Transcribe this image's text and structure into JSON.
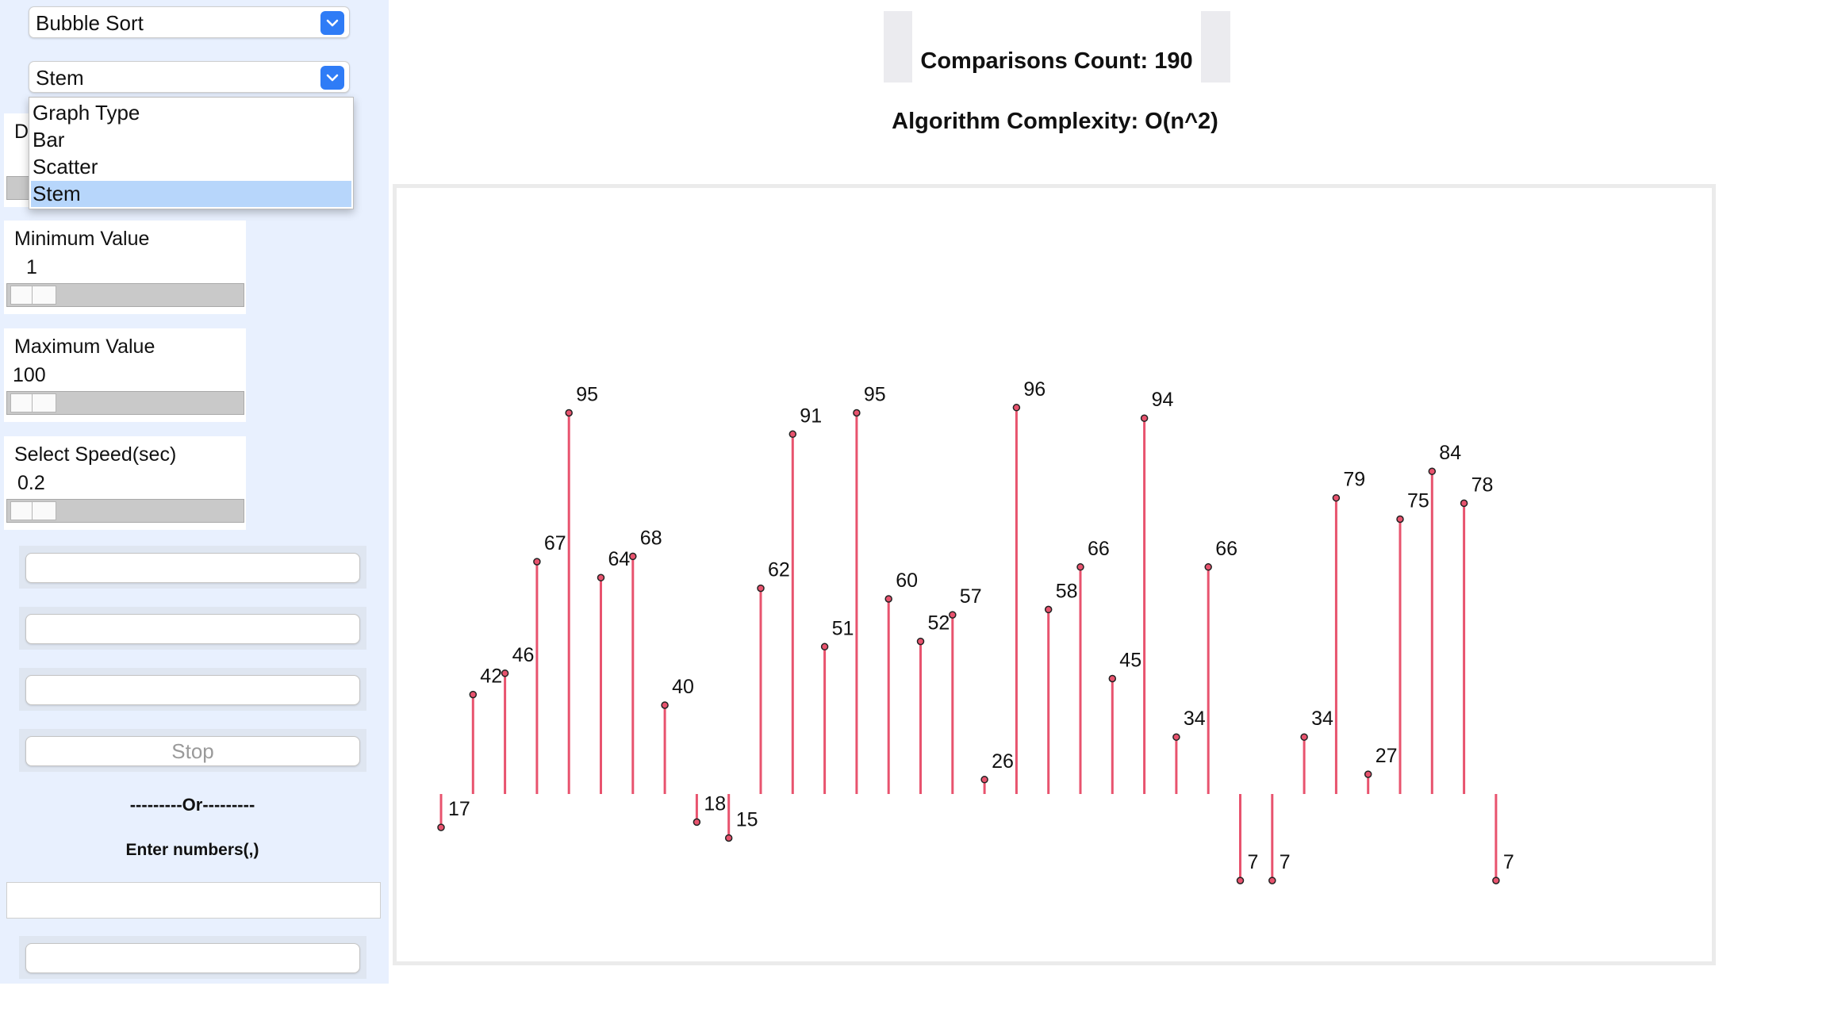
{
  "algorithm_select": {
    "value": "Bubble Sort"
  },
  "graph_type_select": {
    "value": "Stem",
    "options": [
      "Graph Type",
      "Bar",
      "Scatter",
      "Stem"
    ],
    "selected_index": 3
  },
  "controls": {
    "min": {
      "label": "Minimum Value",
      "value": "1"
    },
    "max": {
      "label": "Maximum Value",
      "value": "100"
    },
    "speed": {
      "label": "Select Speed(sec)",
      "value": "0.2"
    }
  },
  "buttons": {
    "stop_label": "Stop"
  },
  "separator_text": "---------Or---------",
  "enter_numbers_label": "Enter numbers(,)",
  "partial_label": "D",
  "stats": {
    "comparisons": "Comparisons Count: 190",
    "complexity": "Algorithm Complexity: O(n^2)"
  },
  "colors": {
    "stem": "#e8536e",
    "accent": "#2f7cf6",
    "selected_option": "#b7d6fb"
  },
  "chart_data": {
    "type": "stem",
    "title": "",
    "xlabel": "",
    "ylabel": "",
    "grid": false,
    "ylim": [
      0,
      100
    ],
    "values": [
      17,
      42,
      46,
      67,
      95,
      64,
      68,
      40,
      18,
      15,
      62,
      91,
      51,
      95,
      60,
      52,
      57,
      26,
      96,
      58,
      66,
      45,
      94,
      34,
      66,
      7,
      7,
      34,
      79,
      27,
      75,
      84,
      78,
      7
    ]
  }
}
